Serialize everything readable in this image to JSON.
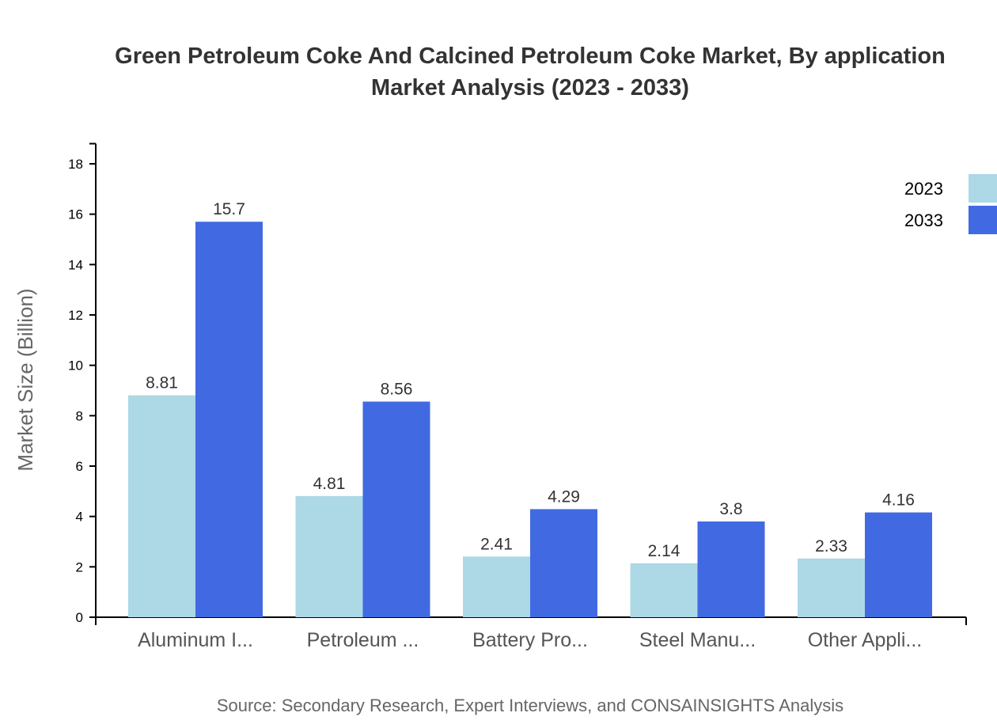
{
  "chart_data": {
    "type": "bar",
    "title": [
      "Green Petroleum Coke And Calcined Petroleum Coke Market, By application",
      "Market Analysis (2023 - 2033)"
    ],
    "xlabel": "",
    "ylabel": "Market Size (Billion)",
    "ylim": [
      0,
      18.8
    ],
    "yticks": [
      0,
      2,
      4,
      6,
      8,
      10,
      12,
      14,
      16,
      18
    ],
    "categories": [
      "Aluminum I...",
      "Petroleum ...",
      "Battery Pro...",
      "Steel Manu...",
      "Other Appli..."
    ],
    "series": [
      {
        "name": "2023",
        "color": "#add8e6",
        "values": [
          8.81,
          4.81,
          2.41,
          2.14,
          2.33
        ]
      },
      {
        "name": "2033",
        "color": "#4169e1",
        "values": [
          15.7,
          8.56,
          4.29,
          3.8,
          4.16
        ]
      }
    ],
    "grid": false,
    "legend": "top-right",
    "source": "Source: Secondary Research, Expert Interviews, and CONSAINSIGHTS Analysis"
  }
}
